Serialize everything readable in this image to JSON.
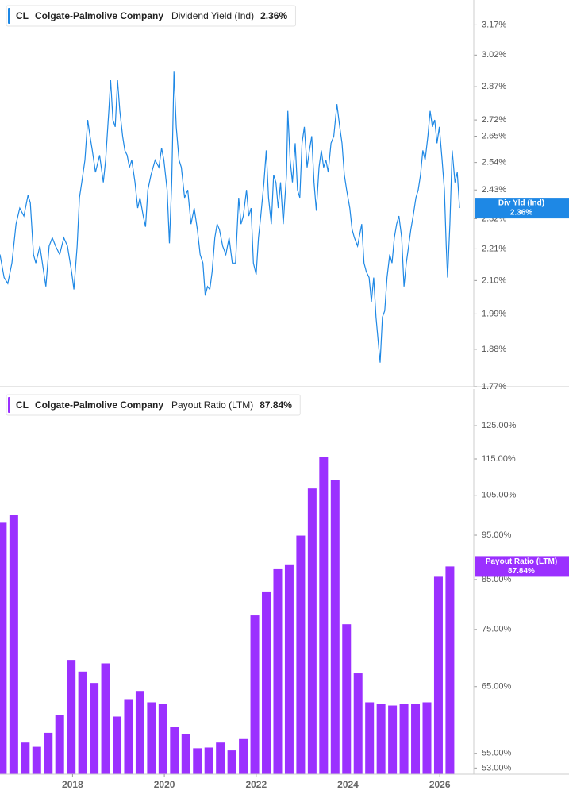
{
  "chart_data": [
    {
      "type": "line",
      "ticker": "CL",
      "company": "Colgate-Palmolive Company",
      "metric": "Dividend Yield (Ind)",
      "current_label": "2.36%",
      "log_y": true,
      "xlim": [
        2016.42,
        2026.74
      ],
      "ylim": [
        1.77,
        3.3
      ],
      "yticks": [
        {
          "value": 1.77,
          "label": "1.77%"
        },
        {
          "value": 1.88,
          "label": "1.88%"
        },
        {
          "value": 1.99,
          "label": "1.99%"
        },
        {
          "value": 2.1,
          "label": "2.10%"
        },
        {
          "value": 2.21,
          "label": "2.21%"
        },
        {
          "value": 2.32,
          "label": "2.32%"
        },
        {
          "value": 2.43,
          "label": "2.43%"
        },
        {
          "value": 2.54,
          "label": "2.54%"
        },
        {
          "value": 2.65,
          "label": "2.65%"
        },
        {
          "value": 2.72,
          "label": "2.72%"
        },
        {
          "value": 2.87,
          "label": "2.87%"
        },
        {
          "value": 3.02,
          "label": "3.02%"
        },
        {
          "value": 3.17,
          "label": "3.17%"
        }
      ],
      "x": [
        2016.42,
        2016.51,
        2016.59,
        2016.68,
        2016.77,
        2016.85,
        2016.94,
        2017.03,
        2017.08,
        2017.15,
        2017.2,
        2017.29,
        2017.37,
        2017.42,
        2017.49,
        2017.56,
        2017.63,
        2017.72,
        2017.81,
        2017.89,
        2017.98,
        2018.03,
        2018.1,
        2018.15,
        2018.2,
        2018.27,
        2018.33,
        2018.38,
        2018.43,
        2018.5,
        2018.59,
        2018.67,
        2018.72,
        2018.79,
        2018.83,
        2018.88,
        2018.93,
        2018.98,
        2019.03,
        2019.09,
        2019.14,
        2019.19,
        2019.24,
        2019.29,
        2019.36,
        2019.42,
        2019.47,
        2019.54,
        2019.59,
        2019.64,
        2019.71,
        2019.8,
        2019.88,
        2019.94,
        2019.99,
        2020.06,
        2020.11,
        2020.16,
        2020.21,
        2020.26,
        2020.32,
        2020.37,
        2020.44,
        2020.51,
        2020.58,
        2020.65,
        2020.72,
        2020.78,
        2020.84,
        2020.89,
        2020.94,
        2020.99,
        2021.04,
        2021.1,
        2021.15,
        2021.2,
        2021.27,
        2021.34,
        2021.41,
        2021.48,
        2021.55,
        2021.62,
        2021.67,
        2021.72,
        2021.79,
        2021.84,
        2021.89,
        2021.94,
        2022.0,
        2022.05,
        2022.1,
        2022.17,
        2022.22,
        2022.27,
        2022.33,
        2022.38,
        2022.43,
        2022.48,
        2022.53,
        2022.59,
        2022.66,
        2022.69,
        2022.74,
        2022.79,
        2022.85,
        2022.9,
        2022.95,
        2023.0,
        2023.05,
        2023.11,
        2023.16,
        2023.21,
        2023.26,
        2023.31,
        2023.37,
        2023.42,
        2023.47,
        2023.52,
        2023.57,
        2023.63,
        2023.69,
        2023.76,
        2023.82,
        2023.87,
        2023.92,
        2023.97,
        2024.04,
        2024.09,
        2024.14,
        2024.21,
        2024.3,
        2024.35,
        2024.4,
        2024.46,
        2024.51,
        2024.56,
        2024.61,
        2024.66,
        2024.7,
        2024.75,
        2024.8,
        2024.85,
        2024.91,
        2024.96,
        2025.01,
        2025.06,
        2025.11,
        2025.17,
        2025.22,
        2025.27,
        2025.32,
        2025.37,
        2025.42,
        2025.48,
        2025.53,
        2025.58,
        2025.63,
        2025.68,
        2025.74,
        2025.79,
        2025.84,
        2025.89,
        2025.94,
        2025.99,
        2026.05,
        2026.1,
        2026.14,
        2026.17,
        2026.22,
        2026.27,
        2026.33,
        2026.38,
        2026.43
      ],
      "series": [
        {
          "name": "Div Yld (Ind)",
          "color": "#1e88e5",
          "values": [
            2.19,
            2.11,
            2.09,
            2.16,
            2.3,
            2.36,
            2.33,
            2.41,
            2.38,
            2.19,
            2.16,
            2.22,
            2.13,
            2.08,
            2.22,
            2.25,
            2.22,
            2.19,
            2.25,
            2.22,
            2.13,
            2.07,
            2.22,
            2.4,
            2.46,
            2.55,
            2.72,
            2.65,
            2.59,
            2.5,
            2.57,
            2.46,
            2.55,
            2.76,
            2.9,
            2.72,
            2.69,
            2.9,
            2.76,
            2.65,
            2.59,
            2.57,
            2.52,
            2.55,
            2.46,
            2.36,
            2.4,
            2.33,
            2.29,
            2.43,
            2.49,
            2.55,
            2.52,
            2.6,
            2.55,
            2.43,
            2.23,
            2.46,
            2.94,
            2.69,
            2.55,
            2.52,
            2.4,
            2.43,
            2.3,
            2.36,
            2.28,
            2.19,
            2.16,
            2.05,
            2.08,
            2.07,
            2.13,
            2.25,
            2.3,
            2.28,
            2.22,
            2.19,
            2.25,
            2.16,
            2.16,
            2.4,
            2.3,
            2.33,
            2.43,
            2.33,
            2.36,
            2.16,
            2.12,
            2.25,
            2.33,
            2.46,
            2.59,
            2.4,
            2.3,
            2.49,
            2.46,
            2.36,
            2.46,
            2.3,
            2.49,
            2.76,
            2.55,
            2.46,
            2.62,
            2.43,
            2.4,
            2.62,
            2.69,
            2.52,
            2.59,
            2.65,
            2.46,
            2.35,
            2.52,
            2.59,
            2.52,
            2.55,
            2.5,
            2.62,
            2.65,
            2.79,
            2.69,
            2.62,
            2.49,
            2.43,
            2.36,
            2.28,
            2.25,
            2.22,
            2.3,
            2.16,
            2.13,
            2.11,
            2.03,
            2.11,
            1.98,
            1.9,
            1.84,
            1.98,
            2.0,
            2.11,
            2.19,
            2.16,
            2.25,
            2.3,
            2.33,
            2.25,
            2.08,
            2.16,
            2.22,
            2.28,
            2.33,
            2.4,
            2.43,
            2.49,
            2.59,
            2.55,
            2.65,
            2.76,
            2.69,
            2.72,
            2.62,
            2.69,
            2.55,
            2.43,
            2.22,
            2.11,
            2.3,
            2.59,
            2.46,
            2.5,
            2.36
          ]
        }
      ]
    },
    {
      "type": "bar",
      "ticker": "CL",
      "company": "Colgate-Palmolive Company",
      "metric": "Payout Ratio (LTM)",
      "current_label": "87.84%",
      "log_y": true,
      "xlim": [
        2016.42,
        2026.74
      ],
      "ylim": [
        52.2,
        137
      ],
      "xticks": [
        2018,
        2020,
        2022,
        2024,
        2026
      ],
      "yticks": [
        {
          "value": 53,
          "label": "53.00%"
        },
        {
          "value": 55,
          "label": "55.00%"
        },
        {
          "value": 65,
          "label": "65.00%"
        },
        {
          "value": 75,
          "label": "75.00%"
        },
        {
          "value": 85,
          "label": "85.00%"
        },
        {
          "value": 95,
          "label": "95.00%"
        },
        {
          "value": 105,
          "label": "105.00%"
        },
        {
          "value": 115,
          "label": "115.00%"
        },
        {
          "value": 125,
          "label": "125.00%"
        }
      ],
      "x": [
        2016.47,
        2016.72,
        2016.97,
        2017.22,
        2017.47,
        2017.72,
        2017.97,
        2018.22,
        2018.47,
        2018.72,
        2018.97,
        2019.22,
        2019.47,
        2019.72,
        2019.97,
        2020.22,
        2020.47,
        2020.72,
        2020.97,
        2021.22,
        2021.47,
        2021.72,
        2021.97,
        2022.22,
        2022.47,
        2022.72,
        2022.97,
        2023.22,
        2023.47,
        2023.72,
        2023.97,
        2024.22,
        2024.47,
        2024.72,
        2024.97,
        2025.22,
        2025.47,
        2025.72,
        2025.97,
        2026.22
      ],
      "series": [
        {
          "name": "Payout Ratio (LTM)",
          "color": "#9b30ff",
          "values": [
            98.0,
            100.0,
            56.5,
            55.9,
            57.9,
            60.5,
            69.5,
            67.5,
            65.6,
            68.9,
            60.3,
            63.0,
            64.3,
            62.5,
            62.3,
            58.7,
            57.7,
            55.7,
            55.8,
            56.5,
            55.4,
            57.0,
            77.7,
            82.5,
            87.4,
            88.3,
            94.9,
            106.8,
            115.5,
            109.2,
            76.0,
            67.2,
            62.5,
            62.2,
            62.0,
            62.3,
            62.2,
            62.5,
            85.6,
            87.84
          ]
        }
      ]
    }
  ]
}
